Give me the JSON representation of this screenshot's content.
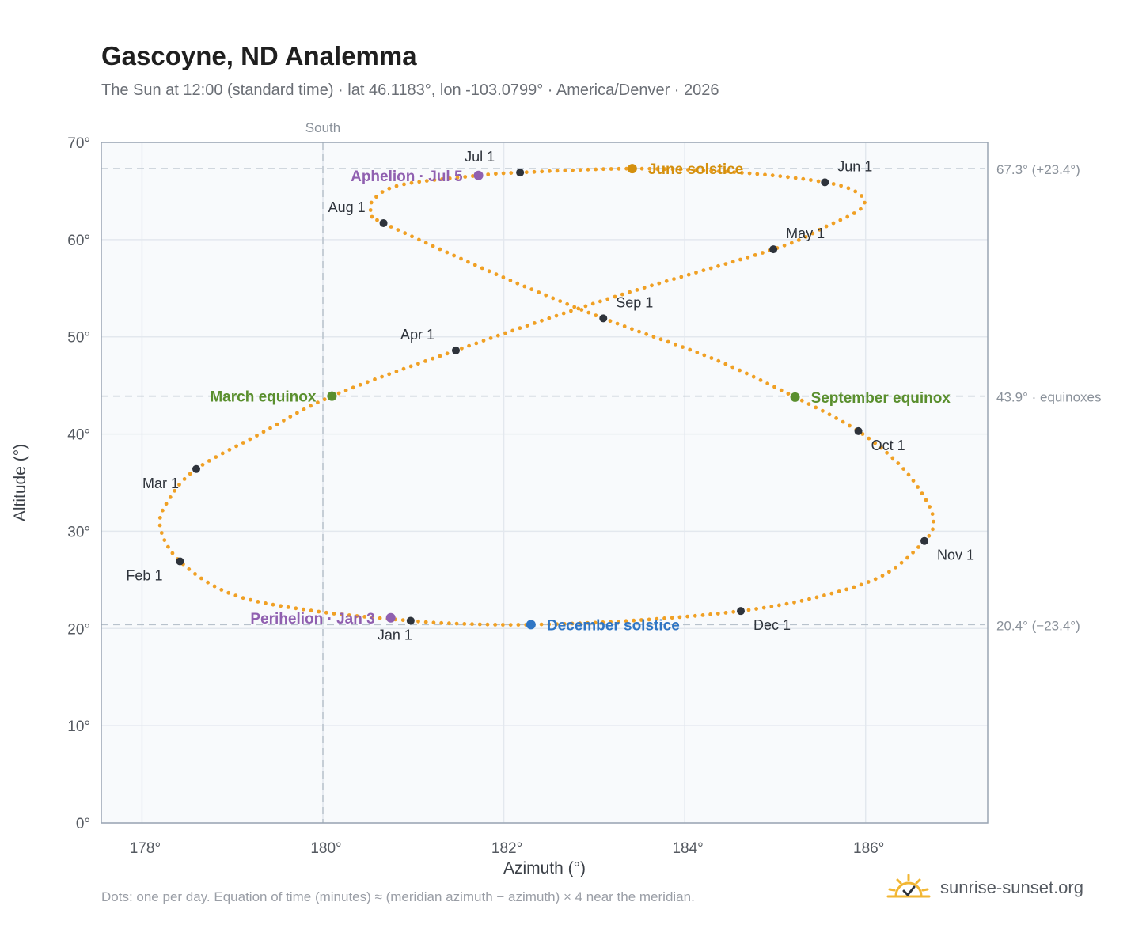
{
  "header": {
    "title": "Gascoyne, ND Analemma",
    "subtitle": "The Sun at 12:00 (standard time) · lat 46.1183°, lon -103.0799° · America/Denver · 2026"
  },
  "footer": {
    "note": "Dots: one per day. Equation of time (minutes) ≈ (meridian azimuth − azimuth) × 4 near the meridian.",
    "brand": "sunrise-sunset.org"
  },
  "colors": {
    "path": "#f0a024",
    "month_dot": "#2e333b",
    "june_solstice": "#d4900e",
    "december_solstice": "#2f75c4",
    "equinox": "#5a8f2e",
    "apsis": "#9060b0",
    "reference_line": "#b8c2cc",
    "plot_bg": "#f8fafc",
    "grid": "#e3e8ee",
    "frame": "#9aa5b3"
  },
  "chart_data": {
    "type": "scatter",
    "xlabel": "Azimuth (°)",
    "ylabel": "Altitude (°)",
    "xlim": [
      177.55,
      187.35
    ],
    "ylim": [
      0,
      70
    ],
    "x_ticks": [
      {
        "value": 178,
        "label": "178°"
      },
      {
        "value": 180,
        "label": "180°"
      },
      {
        "value": 182,
        "label": "182°"
      },
      {
        "value": 184,
        "label": "184°"
      },
      {
        "value": 186,
        "label": "186°"
      }
    ],
    "y_ticks": [
      {
        "value": 0,
        "label": "0°"
      },
      {
        "value": 10,
        "label": "10°"
      },
      {
        "value": 20,
        "label": "20°"
      },
      {
        "value": 30,
        "label": "30°"
      },
      {
        "value": 40,
        "label": "40°"
      },
      {
        "value": 50,
        "label": "50°"
      },
      {
        "value": 60,
        "label": "60°"
      },
      {
        "value": 70,
        "label": "70°"
      }
    ],
    "grid": true,
    "reference_lines": [
      {
        "axis": "y",
        "value": 67.3,
        "label": "67.3° (+23.4°)"
      },
      {
        "axis": "y",
        "value": 43.9,
        "label": "43.9° · equinoxes"
      },
      {
        "axis": "y",
        "value": 20.4,
        "label": "20.4° (−23.4°)"
      },
      {
        "axis": "x",
        "value": 180,
        "label": "South"
      }
    ],
    "path_keypoints": [
      {
        "az": 180.97,
        "alt": 20.8
      },
      {
        "az": 179.9,
        "alt": 21.8
      },
      {
        "az": 179.0,
        "alt": 23.5
      },
      {
        "az": 178.42,
        "alt": 26.9
      },
      {
        "az": 178.2,
        "alt": 30.5
      },
      {
        "az": 178.3,
        "alt": 33.3
      },
      {
        "az": 178.6,
        "alt": 36.4
      },
      {
        "az": 179.3,
        "alt": 40.0
      },
      {
        "az": 180.1,
        "alt": 43.9
      },
      {
        "az": 181.47,
        "alt": 48.6
      },
      {
        "az": 183.15,
        "alt": 53.9
      },
      {
        "az": 184.98,
        "alt": 59.0
      },
      {
        "az": 185.55,
        "alt": 61.3
      },
      {
        "az": 185.95,
        "alt": 63.2
      },
      {
        "az": 185.93,
        "alt": 64.7
      },
      {
        "az": 185.55,
        "alt": 65.9
      },
      {
        "az": 184.6,
        "alt": 66.9
      },
      {
        "az": 183.42,
        "alt": 67.3
      },
      {
        "az": 182.18,
        "alt": 66.9
      },
      {
        "az": 181.72,
        "alt": 66.6
      },
      {
        "az": 180.85,
        "alt": 65.6
      },
      {
        "az": 180.55,
        "alt": 64.0
      },
      {
        "az": 180.55,
        "alt": 62.5
      },
      {
        "az": 180.67,
        "alt": 61.7
      },
      {
        "az": 181.9,
        "alt": 56.5
      },
      {
        "az": 183.1,
        "alt": 51.9
      },
      {
        "az": 184.3,
        "alt": 47.8
      },
      {
        "az": 185.22,
        "alt": 43.8
      },
      {
        "az": 185.92,
        "alt": 40.3
      },
      {
        "az": 186.4,
        "alt": 36.6
      },
      {
        "az": 186.68,
        "alt": 33.0
      },
      {
        "az": 186.75,
        "alt": 30.8
      },
      {
        "az": 186.65,
        "alt": 29.0
      },
      {
        "az": 186.2,
        "alt": 25.5
      },
      {
        "az": 185.5,
        "alt": 23.3
      },
      {
        "az": 184.62,
        "alt": 21.8
      },
      {
        "az": 183.4,
        "alt": 20.8
      },
      {
        "az": 182.3,
        "alt": 20.4
      },
      {
        "az": 181.5,
        "alt": 20.5
      },
      {
        "az": 180.97,
        "alt": 20.8
      }
    ],
    "month_markers": [
      {
        "label": "Jan 1",
        "az": 180.97,
        "alt": 20.8,
        "anchor": "bottom"
      },
      {
        "label": "Feb 1",
        "az": 178.42,
        "alt": 26.9,
        "anchor": "bottom-left"
      },
      {
        "label": "Mar 1",
        "az": 178.6,
        "alt": 36.4,
        "anchor": "bottom-left"
      },
      {
        "label": "Apr 1",
        "az": 181.47,
        "alt": 48.6,
        "anchor": "top-left"
      },
      {
        "label": "May 1",
        "az": 184.98,
        "alt": 59.0,
        "anchor": "top-right"
      },
      {
        "label": "Jun 1",
        "az": 185.55,
        "alt": 65.9,
        "anchor": "top-right"
      },
      {
        "label": "Jul 1",
        "az": 182.18,
        "alt": 66.9,
        "anchor": "top-left"
      },
      {
        "label": "Aug 1",
        "az": 180.67,
        "alt": 61.7,
        "anchor": "top-left"
      },
      {
        "label": "Sep 1",
        "az": 183.1,
        "alt": 51.9,
        "anchor": "top-right"
      },
      {
        "label": "Oct 1",
        "az": 185.92,
        "alt": 40.3,
        "anchor": "bottom-right"
      },
      {
        "label": "Nov 1",
        "az": 186.65,
        "alt": 29.0,
        "anchor": "bottom-right"
      },
      {
        "label": "Dec 1",
        "az": 184.62,
        "alt": 21.8,
        "anchor": "bottom-right"
      }
    ],
    "events": [
      {
        "label": "June solstice",
        "az": 183.42,
        "alt": 67.3,
        "color_key": "june_solstice",
        "side": "right"
      },
      {
        "label": "December solstice",
        "az": 182.3,
        "alt": 20.4,
        "color_key": "december_solstice",
        "side": "right"
      },
      {
        "label": "March equinox",
        "az": 180.1,
        "alt": 43.9,
        "color_key": "equinox",
        "side": "left"
      },
      {
        "label": "September equinox",
        "az": 185.22,
        "alt": 43.8,
        "color_key": "equinox",
        "side": "right"
      },
      {
        "label": "Aphelion · Jul 5",
        "az": 181.72,
        "alt": 66.6,
        "color_key": "apsis",
        "side": "left"
      },
      {
        "label": "Perihelion · Jan 3",
        "az": 180.75,
        "alt": 21.1,
        "color_key": "apsis",
        "side": "left"
      }
    ]
  }
}
